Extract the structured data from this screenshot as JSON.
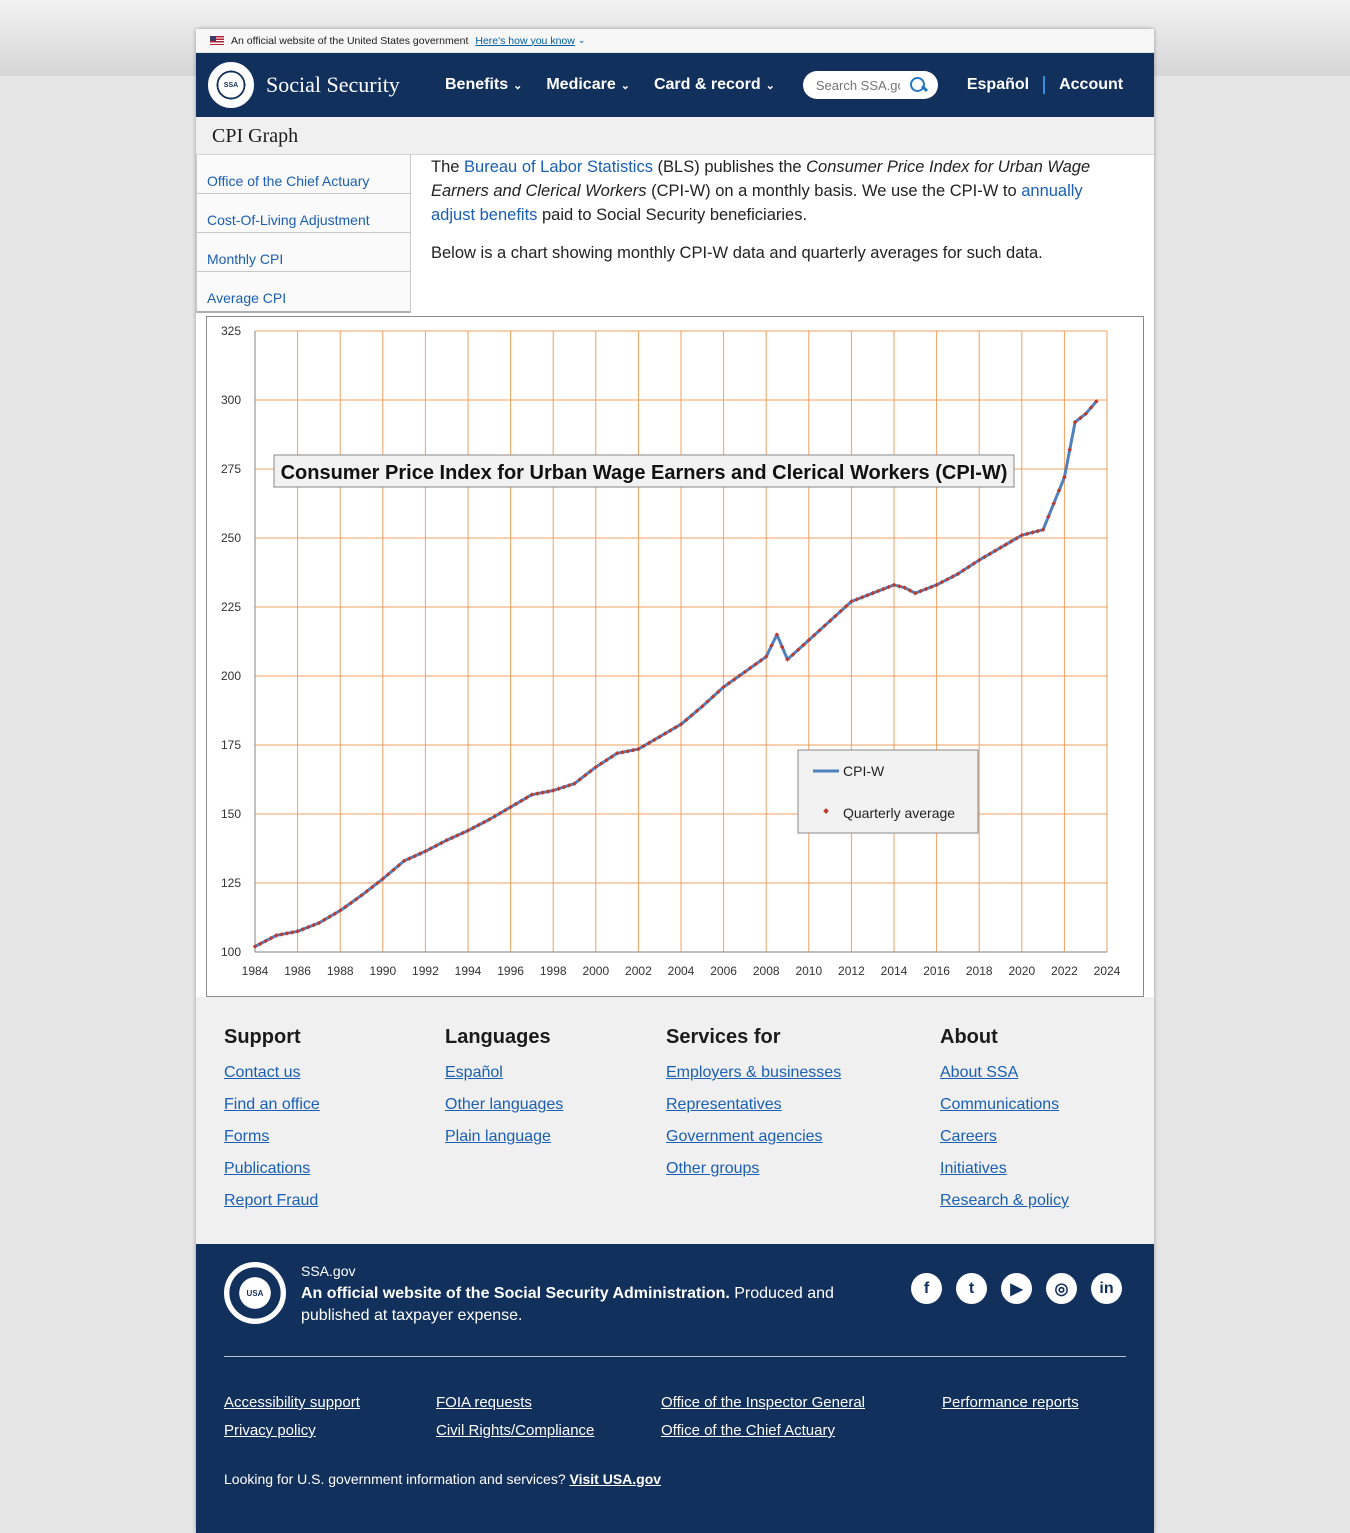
{
  "banner": {
    "text": "An official website of the United States government",
    "link": "Here's how you know"
  },
  "header": {
    "brand": "Social Security",
    "nav": [
      {
        "label": "Benefits"
      },
      {
        "label": "Medicare"
      },
      {
        "label": "Card & record"
      }
    ],
    "search_placeholder": "Search SSA.gov",
    "espanol": "Español",
    "account": "Account"
  },
  "page_title": "CPI Graph",
  "sidebar": {
    "items": [
      {
        "label": "Office of the Chief Actuary"
      },
      {
        "label": "Cost-Of-Living Adjustment"
      },
      {
        "label": "Monthly CPI"
      },
      {
        "label": "Average CPI"
      }
    ]
  },
  "intro": {
    "p1_prefix": "The ",
    "p1_link1": "Bureau of Labor Statistics",
    "p1_mid": " (BLS) publishes the ",
    "p1_italic1": "Consumer Price Index for Urban Wage Earners and Clerical Workers",
    "p1_mid2": " (CPI-W) on a monthly basis. We use the CPI-W to ",
    "p1_link2": "annually adjust benefits",
    "p1_suffix": " paid to Social Security beneficiaries.",
    "p2": "Below is a chart showing monthly CPI-W data and quarterly averages for such data."
  },
  "chart_data": {
    "type": "line",
    "title": "Consumer Price Index for Urban Wage Earners and Clerical Workers (CPI-W)",
    "xlabel": "",
    "ylabel": "",
    "xlim": [
      1984,
      2024
    ],
    "ylim": [
      100,
      325
    ],
    "x_ticks": [
      "1984",
      "1986",
      "1988",
      "1990",
      "1992",
      "1994",
      "1996",
      "1998",
      "2000",
      "2002",
      "2004",
      "2006",
      "2008",
      "2010",
      "2012",
      "2014",
      "2016",
      "2018",
      "2020",
      "2022",
      "2024"
    ],
    "y_ticks": [
      "100",
      "125",
      "150",
      "175",
      "200",
      "225",
      "250",
      "275",
      "300",
      "325"
    ],
    "grid": true,
    "grid_color": "#f0a060",
    "legend_position": "lower-right",
    "series": [
      {
        "name": "CPI-W",
        "color": "#4f81bd",
        "x": [
          1984,
          1985,
          1986,
          1987,
          1988,
          1989,
          1990,
          1991,
          1992,
          1993,
          1994,
          1995,
          1996,
          1997,
          1998,
          1999,
          2000,
          2001,
          2002,
          2003,
          2004,
          2005,
          2006,
          2007,
          2008,
          2008.5,
          2009,
          2010,
          2011,
          2012,
          2013,
          2014,
          2014.5,
          2015,
          2016,
          2017,
          2018,
          2019,
          2020,
          2021,
          2022,
          2022.5,
          2023,
          2023.5
        ],
        "y": [
          102,
          106,
          107.5,
          110.5,
          115,
          120.5,
          126.5,
          133,
          136.5,
          140.5,
          144,
          148,
          152.5,
          157,
          158.5,
          161,
          167,
          172,
          173.5,
          178,
          182.5,
          189,
          196,
          201.5,
          207,
          215,
          206,
          213,
          220,
          227,
          230,
          233,
          232,
          230,
          233,
          237,
          242,
          246.5,
          251,
          253,
          272,
          292,
          295,
          299.5
        ]
      },
      {
        "name": "Quarterly average",
        "color": "#c0392b",
        "marker": "diamond"
      }
    ]
  },
  "footer": {
    "columns": [
      {
        "title": "Support",
        "links": [
          "Contact us",
          "Find an office",
          "Forms",
          "Publications",
          "Report Fraud"
        ]
      },
      {
        "title": "Languages",
        "links": [
          "Español",
          "Other languages",
          "Plain language"
        ]
      },
      {
        "title": "Services for",
        "links": [
          "Employers & businesses",
          "Representatives",
          "Government agencies",
          "Other groups"
        ]
      },
      {
        "title": "About",
        "links": [
          "About SSA",
          "Communications",
          "Careers",
          "Initiatives",
          "Research & policy"
        ]
      }
    ],
    "ssagov": "SSA.gov",
    "official_bold": "An official website of the Social Security Administration.",
    "official_rest": " Produced and published at taxpayer expense.",
    "social": [
      {
        "icon": "facebook-icon",
        "glyph": "f"
      },
      {
        "icon": "twitter-icon",
        "glyph": "t"
      },
      {
        "icon": "youtube-icon",
        "glyph": "▶"
      },
      {
        "icon": "instagram-icon",
        "glyph": "◎"
      },
      {
        "icon": "linkedin-icon",
        "glyph": "in"
      }
    ],
    "bottom_links": [
      [
        "Accessibility support",
        "Privacy policy"
      ],
      [
        "FOIA requests",
        "Civil Rights/Compliance"
      ],
      [
        "Office of the Inspector General",
        "Office of the Chief Actuary"
      ],
      [
        "Performance reports"
      ]
    ],
    "usagov_text": "Looking for U.S. government information and services? ",
    "usagov_link": "Visit USA.gov"
  }
}
